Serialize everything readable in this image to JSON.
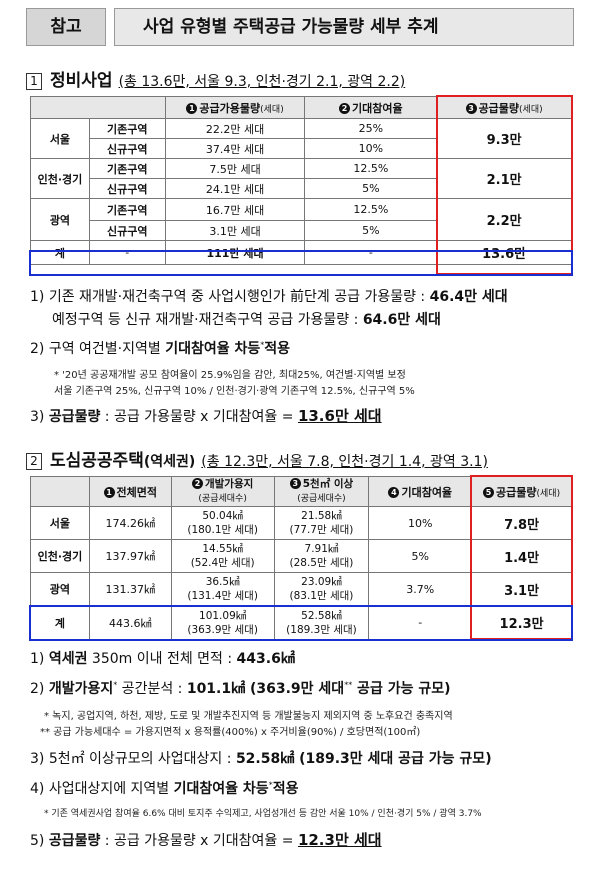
{
  "header": {
    "tag": "참고",
    "title": "사업 유형별 주택공급 가능물량 세부 추계"
  },
  "section1": {
    "num": "1",
    "name": "정비사업",
    "sub": "(총 13.6만, 서울 9.3, 인천·경기 2.1, 광역 2.2)",
    "table": {
      "h1_num": "1",
      "h1": "공급가용물량",
      "h1_unit": "(세대)",
      "h2_num": "2",
      "h2": "기대참여율",
      "h3_num": "3",
      "h3": "공급물량",
      "h3_unit": "(세대)",
      "rows": [
        {
          "region": "서울",
          "type": "기존구역",
          "supply": "22.2만 세대",
          "rate": "25%",
          "total": "9.3만"
        },
        {
          "type": "신규구역",
          "supply": "37.4만 세대",
          "rate": "10%"
        },
        {
          "region": "인천·경기",
          "type": "기존구역",
          "supply": "7.5만 세대",
          "rate": "12.5%",
          "total": "2.1만"
        },
        {
          "type": "신규구역",
          "supply": "24.1만 세대",
          "rate": "5%"
        },
        {
          "region": "광역",
          "type": "기존구역",
          "supply": "16.7만 세대",
          "rate": "12.5%",
          "total": "2.2만"
        },
        {
          "type": "신규구역",
          "supply": "3.1만 세대",
          "rate": "5%"
        }
      ],
      "sum": {
        "label": "계",
        "type": "-",
        "supply": "111만 세대",
        "rate": "-",
        "total": "13.6만"
      }
    },
    "p1_a": "1) 기존 재개발·재건축구역 중 사업시행인가 前단계 공급 가용물량 : ",
    "p1_a_b": "46.4만 세대",
    "p1_b": "예정구역 등 신규 재개발·재건축구역 공급 가용물량 : ",
    "p1_b_b": "64.6만 세대",
    "p2": "2) 구역 여건별·지역별 ",
    "p2_b": "기대참여율 차등",
    "p2_sup": "*",
    "p2_end": "적용",
    "n1": "* '20년 공공재개발 공모 참여율이 25.9%임을 감안, 최대25%, 여건별·지역별 보정",
    "n2": "서울 기존구역 25%, 신규구역 10% / 인천·경기·광역 기존구역 12.5%, 신규구역 5%",
    "p3": "3) ",
    "p3_b": "공급물량",
    "p3_mid": " : 공급 가용물량 x 기대참여율 = ",
    "p3_u": "13.6만 세대"
  },
  "section2": {
    "num": "2",
    "name": "도심공공주택",
    "name2": "(역세권)",
    "sub": "(총 12.3만, 서울 7.8, 인천·경기 1.4, 광역 3.1)",
    "table": {
      "h1_num": "1",
      "h1": "전체면적",
      "h2_num": "2",
      "h2": "개발가용지",
      "h2_unit": "(공급세대수)",
      "h3_num": "3",
      "h3": "5천㎡ 이상",
      "h3_unit": "(공급세대수)",
      "h4_num": "4",
      "h4": "기대참여율",
      "h5_num": "5",
      "h5": "공급물량",
      "h5_unit": "(세대)",
      "rows": [
        {
          "region": "서울",
          "area": "174.26㎢",
          "dev": "50.04㎢",
          "dev_u": "(180.1만 세대)",
          "big": "21.58㎢",
          "big_u": "(77.7만 세대)",
          "rate": "10%",
          "total": "7.8만"
        },
        {
          "region": "인천·경기",
          "area": "137.97㎢",
          "dev": "14.55㎢",
          "dev_u": "(52.4만 세대)",
          "big": "7.91㎢",
          "big_u": "(28.5만 세대)",
          "rate": "5%",
          "total": "1.4만"
        },
        {
          "region": "광역",
          "area": "131.37㎢",
          "dev": "36.5㎢",
          "dev_u": "(131.4만 세대)",
          "big": "23.09㎢",
          "big_u": "(83.1만 세대)",
          "rate": "3.7%",
          "total": "3.1만"
        }
      ],
      "sum": {
        "label": "계",
        "area": "443.6㎢",
        "dev": "101.09㎢",
        "dev_u": "(363.9만 세대)",
        "big": "52.58㎢",
        "big_u": "(189.3만 세대)",
        "rate": "-",
        "total": "12.3만"
      }
    },
    "q1": "1) ",
    "q1_b": "역세권",
    "q1_mid": " 350m 이내 전체 면적 : ",
    "q1_v": "443.6㎢",
    "q2": "2) ",
    "q2_b": "개발가용지",
    "q2_sup": "*",
    "q2_mid": " 공간분석 : ",
    "q2_v": "101.1㎢ (363.9만 세대",
    "q2_sup2": "**",
    "q2_end": " 공급 가능 규모)",
    "m1": "* 녹지, 공업지역, 하천, 제방, 도로 및 개발추진지역 등 개발불능지 제외지역 중 노후요건 충족지역",
    "m2": "** 공급 가능세대수 = 가용지면적 x 용적률(400%) x 주거비율(90%) / 호당면적(100㎡)",
    "q3": "3) 5천㎡ 이상규모의 사업대상지 : ",
    "q3_v": "52.58㎢ (189.3만 세대 공급 가능 규모)",
    "q4": "4) 사업대상지에 지역별 ",
    "q4_b": "기대참여율 차등",
    "q4_sup": "*",
    "q4_end": "적용",
    "m3": "* 기존 역세권사업 참여율 6.6% 대비 토지주 수익제고, 사업성개선 등 감안 서울 10% / 인천·경기 5% / 광역 3.7%",
    "q5": "5) ",
    "q5_b": "공급물량",
    "q5_mid": " : 공급 가용물량 x 기대참여율 = ",
    "q5_u": "12.3만 세대"
  }
}
